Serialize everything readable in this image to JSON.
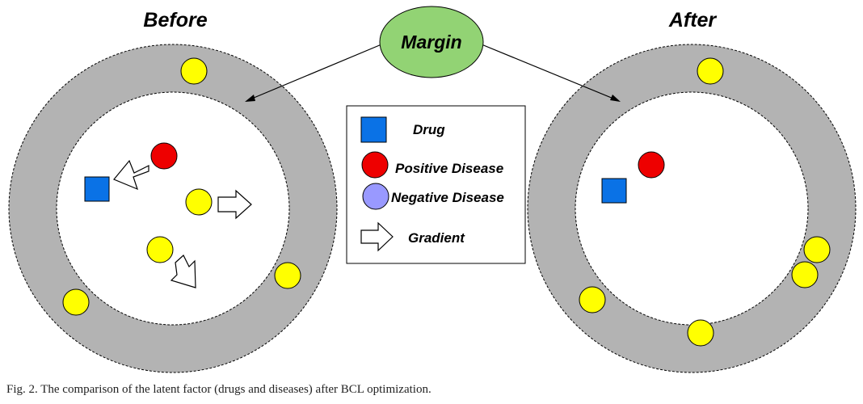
{
  "figure": {
    "before_title": "Before",
    "after_title": "After",
    "margin_label": "Margin",
    "legend": {
      "drug": "Drug",
      "positive_disease": "Positive Disease",
      "negative_disease": "Negative Disease",
      "gradient": "Gradient"
    },
    "colors": {
      "ring": "#b3b3b3",
      "drug": "#0a72e6",
      "positive": "#ee0000",
      "negative": "#9999ff",
      "yellow": "#ffff00",
      "margin_fill": "#92d374"
    },
    "caption": "Fig. 2.  The comparison of the latent factor (drugs and diseases) after BCL optimization."
  }
}
